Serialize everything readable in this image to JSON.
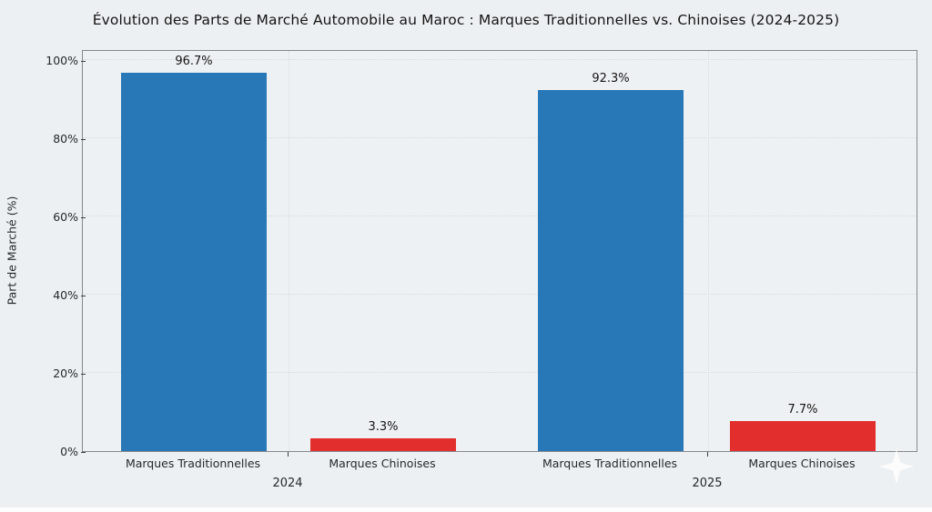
{
  "chart_data": {
    "type": "bar",
    "title": "Évolution des Parts de Marché Automobile au Maroc : Marques Traditionnelles vs. Chinoises (2024-2025)",
    "ylabel": "Part de Marché (%)",
    "xlabel": "",
    "ylim": [
      0,
      102.8
    ],
    "ytick_values": [
      0,
      20,
      40,
      60,
      80,
      100
    ],
    "ytick_labels": [
      "0%",
      "20%",
      "40%",
      "60%",
      "80%",
      "100%"
    ],
    "grid": "dotted-horizontal-and-group-midpoints",
    "legend": "none",
    "categories": [
      "Marques Traditionnelles",
      "Marques Chinoises",
      "Marques Traditionnelles",
      "Marques Chinoises"
    ],
    "groups": [
      {
        "year": "2024",
        "bars": [
          {
            "label": "Marques Traditionnelles",
            "value": 96.7,
            "value_label": "96.7%",
            "color": "#2878b8"
          },
          {
            "label": "Marques Chinoises",
            "value": 3.3,
            "value_label": "3.3%",
            "color": "#e22f2e"
          }
        ]
      },
      {
        "year": "2025",
        "bars": [
          {
            "label": "Marques Traditionnelles",
            "value": 92.3,
            "value_label": "92.3%",
            "color": "#2878b8"
          },
          {
            "label": "Marques Chinoises",
            "value": 7.7,
            "value_label": "7.7%",
            "color": "#e22f2e"
          }
        ]
      }
    ],
    "colors": {
      "traditional_brands": "#2878b8",
      "chinese_brands": "#e22f2e",
      "background": "#edf0f2"
    }
  },
  "watermark": {
    "icon": "sparkle"
  }
}
